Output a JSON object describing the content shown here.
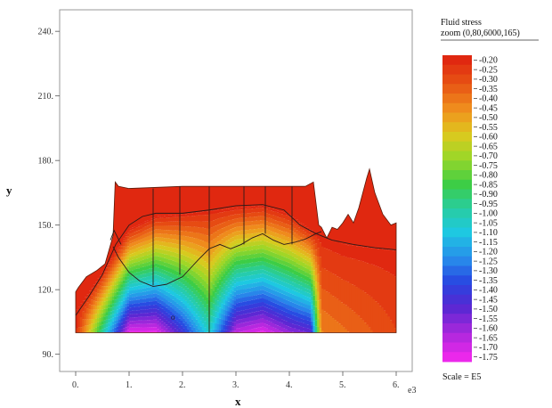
{
  "chart_data": {
    "type": "heatmap",
    "title": "",
    "xlabel": "x",
    "ylabel": "y",
    "x_exponent_label": "e3",
    "xlim": [
      -0.3,
      6.3
    ],
    "ylim": [
      82,
      250
    ],
    "x_ticks": [
      0,
      1,
      2,
      3,
      4,
      5,
      6
    ],
    "x_tick_labels": [
      "0.",
      "1.",
      "2.",
      "3.",
      "4.",
      "5.",
      "6."
    ],
    "y_ticks": [
      90,
      120,
      150,
      180,
      210,
      240
    ],
    "y_tick_labels": [
      "90.",
      "120.",
      "150.",
      "180.",
      "210.",
      "240."
    ],
    "legend": {
      "title_lines": [
        "Fluid stress",
        "zoom (0,80,6000,165)"
      ],
      "position": "right",
      "scale_label": "Scale = E5",
      "levels": [
        -0.2,
        -0.25,
        -0.3,
        -0.35,
        -0.4,
        -0.45,
        -0.5,
        -0.55,
        -0.6,
        -0.65,
        -0.7,
        -0.75,
        -0.8,
        -0.85,
        -0.9,
        -0.95,
        -1.0,
        -1.05,
        -1.1,
        -1.15,
        -1.2,
        -1.25,
        -1.3,
        -1.35,
        -1.4,
        -1.45,
        -1.5,
        -1.55,
        -1.6,
        -1.65,
        -1.7,
        -1.75
      ],
      "level_labels": [
        "-0.20",
        "-0.25",
        "-0.30",
        "-0.35",
        "-0.40",
        "-0.45",
        "-0.50",
        "-0.55",
        "-0.60",
        "-0.65",
        "-0.70",
        "-0.75",
        "-0.80",
        "-0.85",
        "-0.90",
        "-0.95",
        "-1.00",
        "-1.05",
        "-1.10",
        "-1.15",
        "-1.20",
        "-1.25",
        "-1.30",
        "-1.35",
        "-1.40",
        "-1.45",
        "-1.50",
        "-1.55",
        "-1.60",
        "-1.65",
        "-1.70",
        "-1.75"
      ]
    },
    "domain_top_profile": [
      [
        0,
        119
      ],
      [
        0.05,
        121
      ],
      [
        0.2,
        126
      ],
      [
        0.4,
        129
      ],
      [
        0.55,
        132
      ],
      [
        0.7,
        145
      ],
      [
        0.74,
        170
      ],
      [
        0.8,
        168
      ],
      [
        1.0,
        167
      ],
      [
        2.0,
        168
      ],
      [
        3.0,
        168
      ],
      [
        4.0,
        168
      ],
      [
        4.3,
        168
      ],
      [
        4.45,
        170
      ],
      [
        4.55,
        150
      ],
      [
        4.6,
        149
      ],
      [
        4.7,
        144
      ],
      [
        4.8,
        149
      ],
      [
        4.9,
        148
      ],
      [
        5.0,
        151
      ],
      [
        5.1,
        155
      ],
      [
        5.2,
        151
      ],
      [
        5.3,
        158
      ],
      [
        5.45,
        172
      ],
      [
        5.5,
        176
      ],
      [
        5.6,
        165
      ],
      [
        5.75,
        155
      ],
      [
        5.9,
        150
      ],
      [
        6.0,
        151
      ]
    ],
    "domain_bottom_y": 100,
    "contour_field": {
      "surface_y": [
        [
          0,
          110
        ],
        [
          0.5,
          128
        ],
        [
          1.0,
          148
        ],
        [
          1.5,
          154
        ],
        [
          2.0,
          155
        ],
        [
          3.0,
          158
        ],
        [
          3.5,
          159
        ],
        [
          4.0,
          155
        ],
        [
          4.5,
          146
        ],
        [
          5.0,
          141
        ],
        [
          6.0,
          138
        ]
      ],
      "surface_value": -0.2,
      "min_value_y": 100,
      "min_value": -1.75,
      "trough_x": [
        [
          0,
          0
        ],
        [
          1.0,
          1.0
        ],
        [
          1.5,
          1.0
        ],
        [
          2.0,
          0.8
        ],
        [
          2.5,
          0.55
        ],
        [
          3.0,
          0.95
        ],
        [
          3.5,
          1.0
        ],
        [
          4.0,
          0.9
        ],
        [
          4.4,
          0.85
        ],
        [
          4.6,
          0.15
        ],
        [
          6.0,
          0.05
        ]
      ]
    },
    "overlay_lines": {
      "upper_boundary": [
        [
          0,
          108
        ],
        [
          0.25,
          117
        ],
        [
          0.5,
          127
        ],
        [
          0.75,
          141
        ],
        [
          1.0,
          150
        ],
        [
          1.25,
          154
        ],
        [
          1.5,
          155.5
        ],
        [
          2.0,
          155.5
        ],
        [
          2.5,
          157
        ],
        [
          3.0,
          159
        ],
        [
          3.5,
          159.5
        ],
        [
          3.9,
          157
        ],
        [
          4.2,
          150
        ],
        [
          4.5,
          146
        ],
        [
          4.8,
          143
        ],
        [
          5.2,
          141
        ],
        [
          5.6,
          139.5
        ],
        [
          6.0,
          138.5
        ]
      ],
      "lower_boundary": [
        [
          0.7,
          140
        ],
        [
          0.8,
          135
        ],
        [
          1.0,
          128
        ],
        [
          1.2,
          124
        ],
        [
          1.45,
          121.5
        ],
        [
          1.7,
          122.5
        ],
        [
          2.0,
          126
        ],
        [
          2.3,
          134
        ],
        [
          2.5,
          139
        ],
        [
          2.7,
          141
        ],
        [
          2.9,
          139
        ],
        [
          3.1,
          141
        ],
        [
          3.3,
          144
        ],
        [
          3.5,
          146
        ],
        [
          3.7,
          143
        ],
        [
          3.9,
          141
        ],
        [
          4.1,
          142
        ],
        [
          4.3,
          143.5
        ],
        [
          4.5,
          146
        ],
        [
          4.6,
          147
        ]
      ],
      "verticals": [
        [
          1.45,
          122,
          167
        ],
        [
          1.95,
          127,
          168
        ],
        [
          2.5,
          100,
          168
        ],
        [
          3.15,
          141,
          168
        ],
        [
          3.55,
          146,
          168
        ],
        [
          4.05,
          141,
          168
        ]
      ],
      "left_bump": [
        [
          0.65,
          143
        ],
        [
          0.72,
          147.5
        ],
        [
          0.85,
          141
        ]
      ]
    },
    "small_marker_text": "o"
  }
}
